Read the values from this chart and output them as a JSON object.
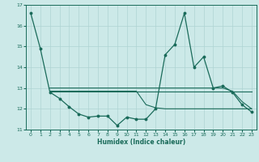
{
  "xlabel": "Humidex (Indice chaleur)",
  "background_color": "#cce9e8",
  "grid_color": "#afd4d3",
  "line_color": "#1a6b5a",
  "xlim": [
    -0.5,
    23.5
  ],
  "ylim": [
    11,
    17
  ],
  "yticks": [
    11,
    12,
    13,
    14,
    15,
    16,
    17
  ],
  "xticks": [
    0,
    1,
    2,
    3,
    4,
    5,
    6,
    7,
    8,
    9,
    10,
    11,
    12,
    13,
    14,
    15,
    16,
    17,
    18,
    19,
    20,
    21,
    22,
    23
  ],
  "series1_x": [
    0,
    1,
    2,
    3,
    4,
    5,
    6,
    7,
    8,
    9,
    10,
    11,
    12,
    13,
    14,
    15,
    16,
    17,
    18,
    19,
    20,
    21,
    22,
    23
  ],
  "series1_y": [
    16.6,
    14.9,
    12.8,
    12.5,
    12.1,
    11.75,
    11.6,
    11.65,
    11.65,
    11.2,
    11.6,
    11.5,
    11.5,
    12.0,
    14.6,
    15.1,
    16.6,
    14.0,
    14.5,
    13.0,
    13.1,
    12.8,
    12.2,
    11.85
  ],
  "series2_x": [
    2,
    23
  ],
  "series2_y": [
    12.85,
    12.85
  ],
  "series3_x": [
    2,
    19,
    20,
    21,
    22,
    23
  ],
  "series3_y": [
    13.0,
    13.0,
    13.0,
    12.85,
    12.35,
    12.0
  ],
  "series4_x": [
    2,
    3,
    4,
    5,
    6,
    7,
    8,
    9,
    10,
    11,
    12,
    13,
    14,
    15,
    16,
    17,
    18,
    19,
    20,
    21,
    22,
    23
  ],
  "series4_y": [
    12.85,
    12.85,
    12.85,
    12.85,
    12.85,
    12.85,
    12.85,
    12.85,
    12.85,
    12.85,
    12.2,
    12.05,
    12.0,
    12.0,
    12.0,
    12.0,
    12.0,
    12.0,
    12.0,
    12.0,
    12.0,
    12.0
  ]
}
